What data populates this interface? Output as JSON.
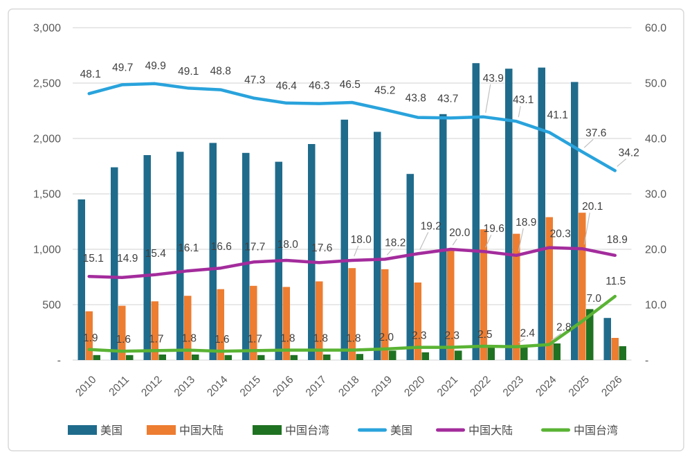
{
  "chart_data": {
    "type": "combo-bar-line",
    "title": "",
    "categories": [
      "2010",
      "2011",
      "2012",
      "2013",
      "2014",
      "2015",
      "2016",
      "2017",
      "2018",
      "2019",
      "2020",
      "2021",
      "2022",
      "2023",
      "2024",
      "2025",
      "2026"
    ],
    "left_axis": {
      "min": 0,
      "max": 3000,
      "step": 500,
      "ticks": [
        {
          "value": 3000,
          "label": "3,000"
        },
        {
          "value": 2500,
          "label": "2,500"
        },
        {
          "value": 2000,
          "label": "2,000"
        },
        {
          "value": 1500,
          "label": "1,500"
        },
        {
          "value": 1000,
          "label": "1,000"
        },
        {
          "value": 500,
          "label": "500"
        },
        {
          "value": 0,
          "label": "-"
        }
      ]
    },
    "right_axis": {
      "min": 0,
      "max": 60,
      "step": 10,
      "ticks": [
        {
          "value": 60,
          "label": "60.0"
        },
        {
          "value": 50,
          "label": "50.0"
        },
        {
          "value": 40,
          "label": "40.0"
        },
        {
          "value": 30,
          "label": "30.0"
        },
        {
          "value": 20,
          "label": "20.0"
        },
        {
          "value": 10,
          "label": "10.0"
        },
        {
          "value": 0,
          "label": "-"
        }
      ]
    },
    "bar_series": [
      {
        "id": "us-bar",
        "name": "美国",
        "axis": "left",
        "color": "#1F6B8C",
        "values": [
          1450,
          1740,
          1850,
          1880,
          1960,
          1870,
          1790,
          1950,
          2170,
          2060,
          1680,
          2220,
          2680,
          2630,
          2640,
          2510,
          380
        ]
      },
      {
        "id": "cn-bar",
        "name": "中国大陆",
        "axis": "left",
        "color": "#ED7D31",
        "values": [
          440,
          490,
          530,
          580,
          640,
          670,
          660,
          710,
          830,
          820,
          700,
          1000,
          1180,
          1140,
          1290,
          1330,
          200
        ]
      },
      {
        "id": "tw-bar",
        "name": "中国台湾",
        "axis": "left",
        "color": "#1F7222",
        "values": [
          45,
          45,
          50,
          50,
          45,
          45,
          45,
          50,
          55,
          85,
          70,
          85,
          130,
          120,
          150,
          460,
          125
        ]
      }
    ],
    "line_series": [
      {
        "id": "us-line",
        "name": "美国",
        "axis": "right",
        "color": "#29A3DC",
        "label_decimals": 1,
        "values": [
          48.1,
          49.7,
          49.9,
          49.1,
          48.8,
          47.3,
          46.4,
          46.3,
          46.5,
          45.2,
          43.8,
          43.7,
          43.9,
          43.1,
          41.1,
          37.6,
          34.2
        ]
      },
      {
        "id": "cn-line",
        "name": "中国大陆",
        "axis": "right",
        "color": "#A32C9C",
        "label_decimals": 1,
        "values": [
          15.1,
          14.9,
          15.4,
          16.1,
          16.6,
          17.7,
          18.0,
          17.6,
          18.0,
          18.2,
          19.2,
          20.0,
          19.6,
          18.9,
          20.3,
          20.1,
          18.9
        ]
      },
      {
        "id": "tw-line",
        "name": "中国台湾",
        "axis": "right",
        "color": "#5AB334",
        "label_decimals": 1,
        "values": [
          1.9,
          1.6,
          1.7,
          1.8,
          1.6,
          1.7,
          1.8,
          1.8,
          1.8,
          2.0,
          2.3,
          2.3,
          2.5,
          2.4,
          2.8,
          7.0,
          11.5
        ]
      }
    ],
    "legend": [
      {
        "label": "美国",
        "marker": "bar",
        "color": "#1F6B8C"
      },
      {
        "label": "中国大陆",
        "marker": "bar",
        "color": "#ED7D31"
      },
      {
        "label": "中国台湾",
        "marker": "bar",
        "color": "#1F7222"
      },
      {
        "label": "美国",
        "marker": "line",
        "color": "#29A3DC"
      },
      {
        "label": "中国大陆",
        "marker": "line",
        "color": "#A32C9C"
      },
      {
        "label": "中国台湾",
        "marker": "line",
        "color": "#5AB334"
      }
    ],
    "layout_hints": {
      "grid": true,
      "gridline_color": "#D9D9D9",
      "axis_text_color": "#595959",
      "data_label_color": "#3F3F3F",
      "leader_line_color": "#BFBFBF",
      "frame_border_color": "#D9D9D9",
      "legend_position": "bottom"
    }
  }
}
